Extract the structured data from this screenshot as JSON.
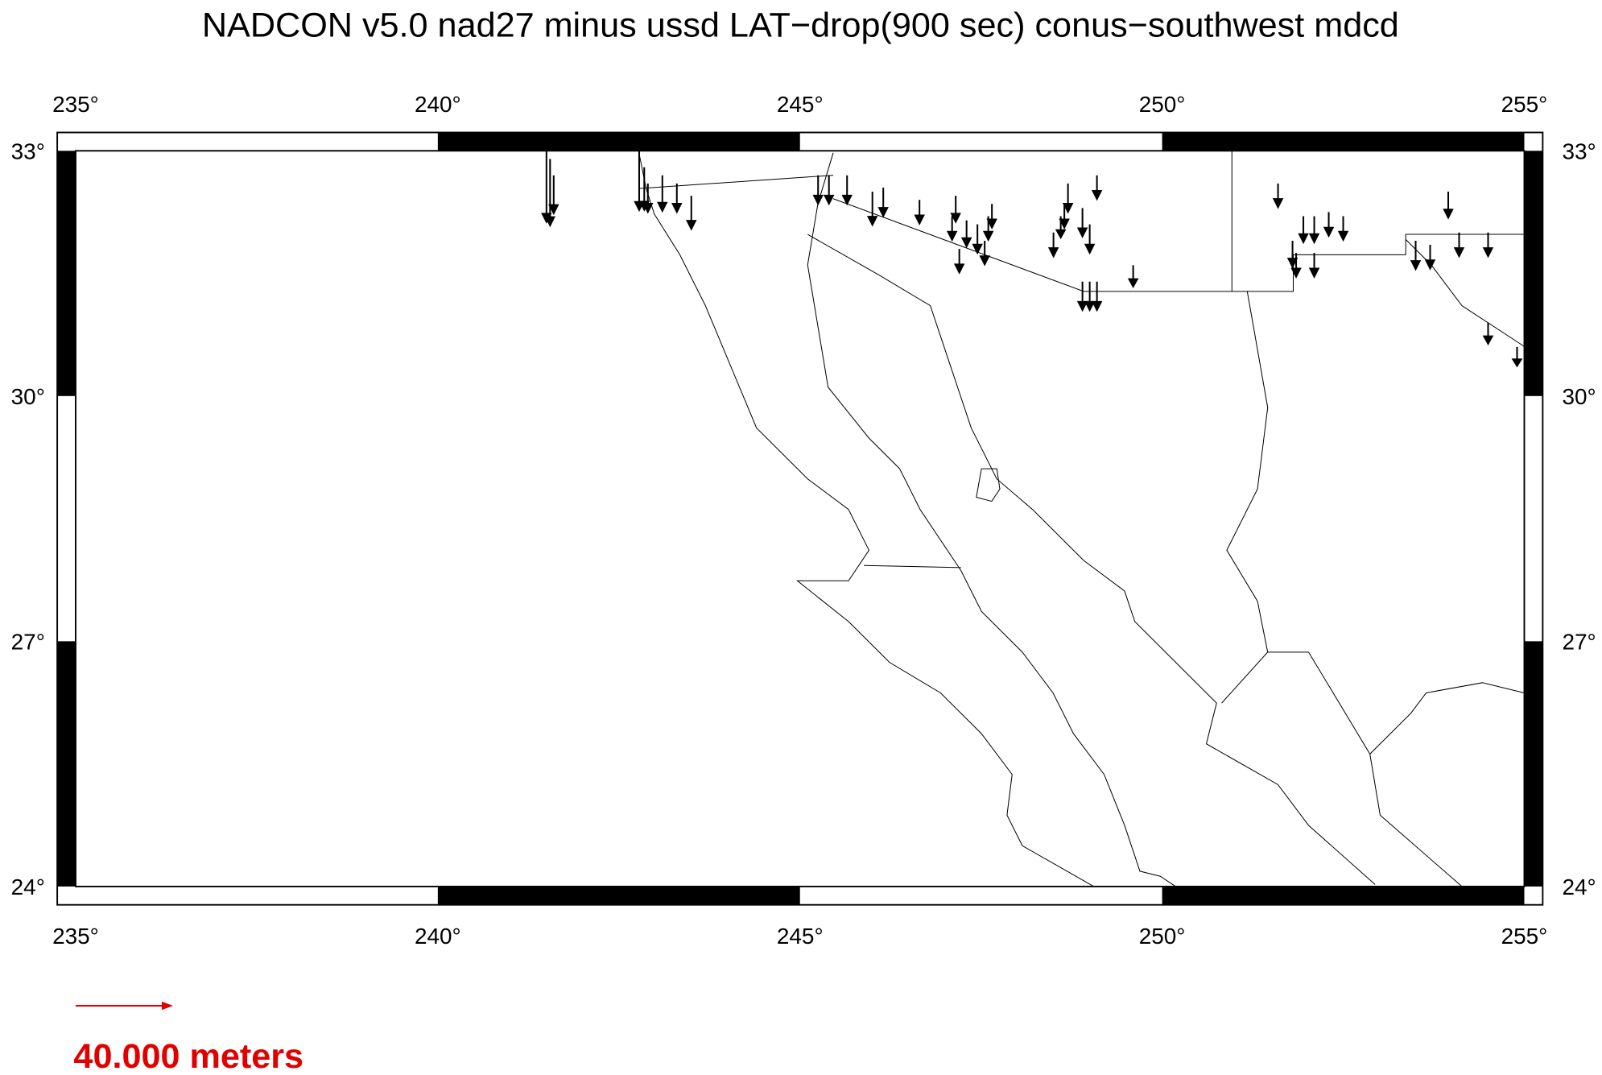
{
  "chart_data": {
    "type": "quiver",
    "title": "NADCON v5.0 nad27 minus ussd LAT−drop(900 sec) conus−southwest mdcd",
    "xlim": [
      235,
      255
    ],
    "ylim": [
      24,
      33
    ],
    "xticks": [
      {
        "value": 235,
        "label": "235°"
      },
      {
        "value": 240,
        "label": "240°"
      },
      {
        "value": 245,
        "label": "245°"
      },
      {
        "value": 250,
        "label": "250°"
      },
      {
        "value": 255,
        "label": "255°"
      }
    ],
    "yticks": [
      {
        "value": 24,
        "label": "24°"
      },
      {
        "value": 27,
        "label": "27°"
      },
      {
        "value": 30,
        "label": "30°"
      },
      {
        "value": 33,
        "label": "33°"
      }
    ],
    "color": "#000000",
    "vectors": [
      {
        "lon": 241.5,
        "lat": 33.0,
        "length": 30
      },
      {
        "lon": 241.55,
        "lat": 32.9,
        "length": 28
      },
      {
        "lon": 241.6,
        "lat": 32.7,
        "length": 16
      },
      {
        "lon": 242.78,
        "lat": 33.0,
        "length": 25
      },
      {
        "lon": 242.85,
        "lat": 32.8,
        "length": 18
      },
      {
        "lon": 242.9,
        "lat": 32.6,
        "length": 12
      },
      {
        "lon": 243.1,
        "lat": 32.7,
        "length": 15
      },
      {
        "lon": 243.3,
        "lat": 32.6,
        "length": 12
      },
      {
        "lon": 243.5,
        "lat": 32.45,
        "length": 14
      },
      {
        "lon": 245.25,
        "lat": 32.7,
        "length": 12
      },
      {
        "lon": 245.4,
        "lat": 32.7,
        "length": 12
      },
      {
        "lon": 245.65,
        "lat": 32.7,
        "length": 12
      },
      {
        "lon": 246.0,
        "lat": 32.5,
        "length": 14
      },
      {
        "lon": 246.15,
        "lat": 32.55,
        "length": 12
      },
      {
        "lon": 246.65,
        "lat": 32.4,
        "length": 10
      },
      {
        "lon": 247.15,
        "lat": 32.45,
        "length": 11
      },
      {
        "lon": 247.1,
        "lat": 32.2,
        "length": 10
      },
      {
        "lon": 247.2,
        "lat": 31.8,
        "length": 10
      },
      {
        "lon": 247.3,
        "lat": 32.15,
        "length": 11
      },
      {
        "lon": 247.45,
        "lat": 32.1,
        "length": 12
      },
      {
        "lon": 247.55,
        "lat": 31.9,
        "length": 10
      },
      {
        "lon": 247.6,
        "lat": 32.2,
        "length": 10
      },
      {
        "lon": 247.65,
        "lat": 32.35,
        "length": 10
      },
      {
        "lon": 248.5,
        "lat": 32.0,
        "length": 10
      },
      {
        "lon": 248.6,
        "lat": 32.2,
        "length": 9
      },
      {
        "lon": 248.65,
        "lat": 32.35,
        "length": 10
      },
      {
        "lon": 248.7,
        "lat": 32.6,
        "length": 12
      },
      {
        "lon": 248.9,
        "lat": 32.3,
        "length": 12
      },
      {
        "lon": 249.0,
        "lat": 32.1,
        "length": 12
      },
      {
        "lon": 248.9,
        "lat": 31.4,
        "length": 12
      },
      {
        "lon": 249.0,
        "lat": 31.4,
        "length": 12
      },
      {
        "lon": 249.1,
        "lat": 31.4,
        "length": 12
      },
      {
        "lon": 249.1,
        "lat": 32.7,
        "length": 10
      },
      {
        "lon": 249.6,
        "lat": 31.6,
        "length": 9
      },
      {
        "lon": 251.6,
        "lat": 32.6,
        "length": 10
      },
      {
        "lon": 251.8,
        "lat": 31.9,
        "length": 11
      },
      {
        "lon": 251.95,
        "lat": 32.2,
        "length": 11
      },
      {
        "lon": 252.1,
        "lat": 32.2,
        "length": 11
      },
      {
        "lon": 252.3,
        "lat": 32.25,
        "length": 10
      },
      {
        "lon": 252.5,
        "lat": 32.2,
        "length": 10
      },
      {
        "lon": 251.85,
        "lat": 31.75,
        "length": 10
      },
      {
        "lon": 252.1,
        "lat": 31.75,
        "length": 10
      },
      {
        "lon": 253.5,
        "lat": 31.9,
        "length": 12
      },
      {
        "lon": 253.7,
        "lat": 31.85,
        "length": 10
      },
      {
        "lon": 253.95,
        "lat": 32.5,
        "length": 11
      },
      {
        "lon": 254.1,
        "lat": 32.0,
        "length": 10
      },
      {
        "lon": 254.5,
        "lat": 32.0,
        "length": 10
      },
      {
        "lon": 254.5,
        "lat": 30.9,
        "length": 9
      },
      {
        "lon": 254.9,
        "lat": 30.6,
        "length": 8
      }
    ],
    "legend": {
      "value": 40,
      "label": "40.000 meters",
      "color": "#e00000"
    }
  }
}
